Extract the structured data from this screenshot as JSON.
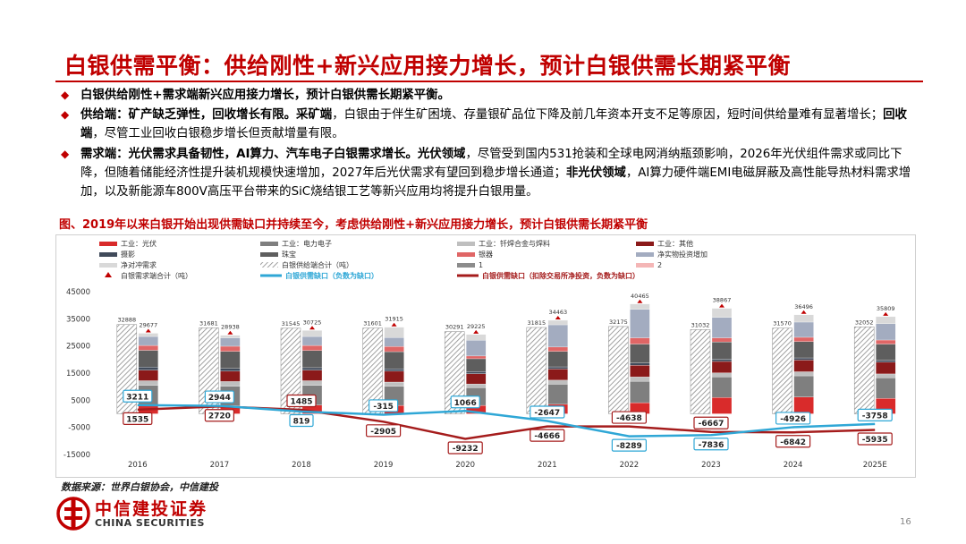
{
  "title": "白银供需平衡：供给刚性+新兴应用接力增长，预计白银供需长期紧平衡",
  "bullets": [
    {
      "bold": "白银供给刚性+需求端新兴应用接力增长，预计白银供需长期紧平衡。",
      "text": ""
    },
    {
      "bold": "供给端：矿产缺乏弹性，回收增长有限。采矿端",
      "text": "，白银由于伴生矿困境、存量银矿品位下降及前几年资本开支不足等原因，短时间供给量难有显著增长；",
      "bold2": "回收端",
      "text2": "，尽管工业回收白银稳步增长但贡献增量有限。"
    },
    {
      "bold": "需求端：光伏需求具备韧性，AI算力、汽车电子白银需求增长。光伏领域",
      "text": "，尽管受到国内531抢装和全球电网消纳瓶颈影响，2026年光伏组件需求或同比下降，但随着储能经济性提升装机规模快速增加，2027年后光伏需求有望回到稳步增长通道；",
      "bold2": "非光伏领域",
      "text2": "，AI算力硬件端EMI电磁屏蔽及高性能导热材料需求增加，以及新能源车800V高压平台带来的SiC烧结银工艺等新兴应用均将提升白银用量。"
    }
  ],
  "figure_caption": "图、2019年以来白银开始出现供需缺口并持续至今，考虑供给刚性+新兴应用接力增长，预计白银供需长期紧平衡",
  "source": "数据来源：世界白银协会，中信建投",
  "logo": {
    "cn": "中信建投证券",
    "en": "CHINA SECURITIES"
  },
  "page_number": "16",
  "colors": {
    "title_red": "#c00000",
    "gap_line_blue": "#2fa7d6",
    "gap_line_red": "#a51c1c"
  },
  "chart_data": {
    "type": "bar",
    "categories": [
      "2016",
      "2017",
      "2018",
      "2019",
      "2020",
      "2021",
      "2022",
      "2023",
      "2024",
      "2025E"
    ],
    "yticks": [
      "45000",
      "35000",
      "25000",
      "15000",
      "5000",
      "-5000",
      "-15000"
    ],
    "ylim": [
      -15000,
      45000
    ],
    "legend": [
      {
        "label": "工业：光伏",
        "color": "#d92b2b"
      },
      {
        "label": "工业：电力电子",
        "color": "#7f7f7f"
      },
      {
        "label": "工业：钎焊合金与焊料",
        "color": "#bfbfbf"
      },
      {
        "label": "工业：其他",
        "color": "#8b1a1a"
      },
      {
        "label": "摄影",
        "color": "#404a5a"
      },
      {
        "label": "珠宝",
        "color": "#5e5e5e"
      },
      {
        "label": "银器",
        "color": "#e06666"
      },
      {
        "label": "净实物投资增加",
        "color": "#a3acc0"
      },
      {
        "label": "净对冲需求",
        "color": "#d9d9d9"
      },
      {
        "label": "白银供给端合计（吨）",
        "color": "#999999"
      },
      {
        "label": "1",
        "color": "#8c8c8c"
      },
      {
        "label": "2",
        "color": "#f4b6b6"
      },
      {
        "label": "白银需求端合计（吨）",
        "color": "#c00000"
      },
      {
        "label": "白银供需缺口（负数为缺口）",
        "color": "#2fa7d6"
      },
      {
        "label": "白银供需缺口（扣除交易所净投资，负数为缺口）",
        "color": "#a51c1c"
      }
    ],
    "series": [
      {
        "name": "白银供给端合计（吨）",
        "values": [
          32888,
          31681,
          31545,
          31601,
          30291,
          31815,
          32175,
          31032,
          31570,
          32052
        ]
      },
      {
        "name": "白银需求端合计（吨）",
        "values": [
          29677,
          28938,
          30725,
          31915,
          29225,
          34463,
          40465,
          38867,
          36496,
          35809
        ]
      },
      {
        "name": "白银供需缺口（负数为缺口）",
        "values": [
          3211,
          2944,
          819,
          -315,
          1066,
          -2647,
          -8289,
          -7836,
          -4926,
          -3758
        ]
      },
      {
        "name": "白银供需缺口（扣除交易所净投资，负数为缺口）",
        "values": [
          1535,
          2720,
          1485,
          -2905,
          -9232,
          -4666,
          -4638,
          -6667,
          -6842,
          -5935
        ]
      }
    ],
    "demand_components": {
      "order": [
        "工业：光伏",
        "工业：电力电子",
        "工业：钎焊合金与焊料",
        "工业：其他",
        "摄影",
        "珠宝",
        "银器",
        "净实物投资增加",
        "净对冲需求"
      ],
      "values": [
        [
          3000,
          7500,
          1700,
          3900,
          1100,
          6200,
          1800,
          3300,
          1177
        ],
        [
          3000,
          7200,
          1700,
          3800,
          1000,
          6300,
          1900,
          3100,
          938
        ],
        [
          3200,
          7300,
          1700,
          3900,
          900,
          6300,
          1900,
          3300,
          2225
        ],
        [
          3100,
          7000,
          1600,
          4000,
          900,
          6300,
          1900,
          3300,
          3815
        ],
        [
          3100,
          6500,
          1400,
          3800,
          800,
          4700,
          1000,
          5800,
          2125
        ],
        [
          3500,
          7400,
          1500,
          4100,
          800,
          5700,
          1600,
          8200,
          1663
        ],
        [
          4100,
          7900,
          1600,
          4300,
          800,
          7000,
          2300,
          10500,
          1965
        ],
        [
          6000,
          7600,
          1500,
          4200,
          800,
          6400,
          1500,
          7500,
          3367
        ],
        [
          6200,
          7800,
          1500,
          4300,
          800,
          6000,
          1600,
          5600,
          2696
        ],
        [
          5700,
          7600,
          1400,
          4300,
          700,
          6000,
          1500,
          6000,
          2609
        ]
      ]
    },
    "bar_labels_supply": [
      "32888",
      "31681",
      "31545",
      "31601",
      "30291",
      "31815",
      "32175",
      "31032",
      "31570",
      "32052"
    ],
    "bar_labels_demand": [
      "29677",
      "28938",
      "30725",
      "31915",
      "29225",
      "34463",
      "40465",
      "38867",
      "36496",
      "35809"
    ],
    "gap_labels_blue": [
      "3211",
      "2944",
      "819",
      "-315",
      "1066",
      "-2647",
      "-8289",
      "-7836",
      "-4926",
      "-3758"
    ],
    "gap_labels_red": [
      "1535",
      "2720",
      "1485",
      "-2905",
      "-9232",
      "-4666",
      "-4638",
      "-6667",
      "-6842",
      "-5935"
    ],
    "grid": false,
    "legend_placement": "top"
  }
}
